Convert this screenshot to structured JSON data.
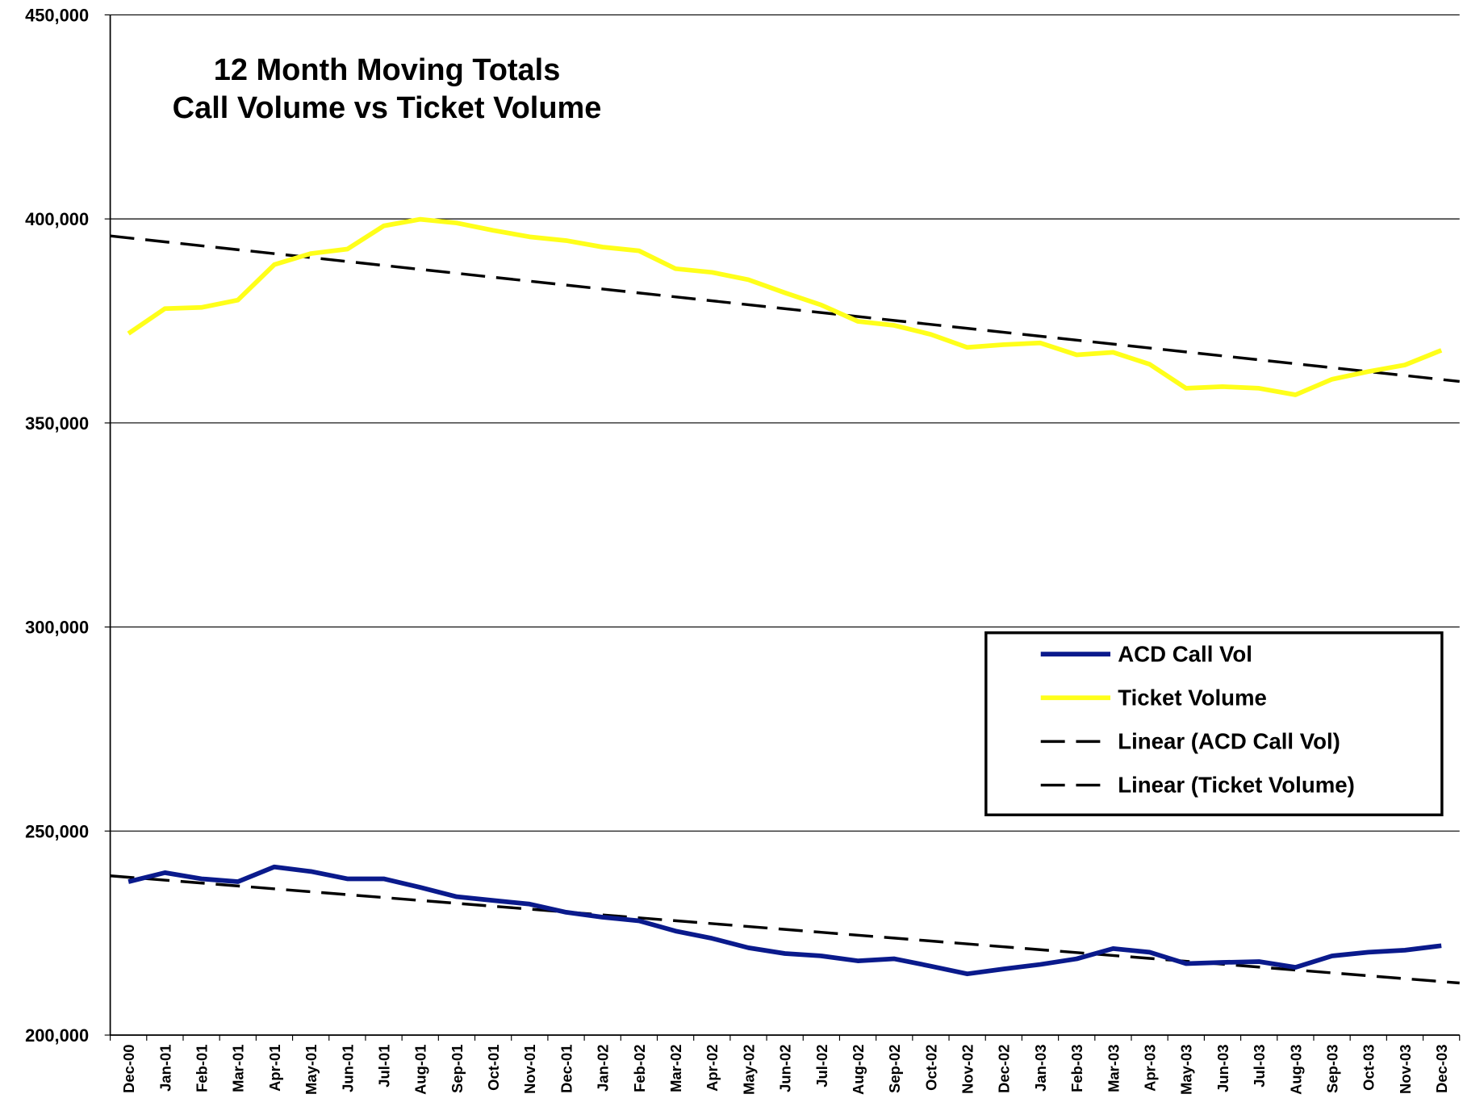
{
  "chart_data": {
    "type": "line",
    "title": [
      "12 Month Moving Totals",
      "Call Volume vs Ticket Volume"
    ],
    "categories": [
      "Dec-00",
      "Jan-01",
      "Feb-01",
      "Mar-01",
      "Apr-01",
      "May-01",
      "Jun-01",
      "Jul-01",
      "Aug-01",
      "Sep-01",
      "Oct-01",
      "Nov-01",
      "Dec-01",
      "Jan-02",
      "Feb-02",
      "Mar-02",
      "Apr-02",
      "May-02",
      "Jun-02",
      "Jul-02",
      "Aug-02",
      "Sep-02",
      "Oct-02",
      "Nov-02",
      "Dec-02",
      "Jan-03",
      "Feb-03",
      "Mar-03",
      "Apr-03",
      "May-03",
      "Jun-03",
      "Jul-03",
      "Aug-03",
      "Sep-03",
      "Oct-03",
      "Nov-03",
      "Dec-03"
    ],
    "series": [
      {
        "name": "ACD Call Vol",
        "color": "#0a1a8c",
        "values": [
          237600,
          239800,
          238300,
          237600,
          241200,
          240100,
          238300,
          238300,
          236200,
          233900,
          233000,
          232100,
          230100,
          228900,
          228000,
          225500,
          223700,
          221400,
          220000,
          219400,
          218200,
          218700,
          216900,
          215000,
          216200,
          217300,
          218700,
          221200,
          220300,
          217500,
          217800,
          218000,
          216600,
          219400,
          220300,
          220800,
          221900
        ],
        "trendline": {
          "name": "Linear (ACD Call Vol)",
          "color": "#000000"
        }
      },
      {
        "name": "Ticket Volume",
        "color": "#ffff1a",
        "values": [
          371900,
          378000,
          378300,
          380100,
          388800,
          391500,
          392600,
          398300,
          399900,
          399000,
          397200,
          395600,
          394700,
          393100,
          392200,
          387800,
          386900,
          385100,
          381900,
          378900,
          374900,
          373900,
          371700,
          368500,
          369200,
          369600,
          366700,
          367300,
          364400,
          358500,
          358900,
          358500,
          356900,
          360700,
          362600,
          364200,
          367800
        ],
        "trendline": {
          "name": "Linear (Ticket Volume)",
          "color": "#000000"
        }
      }
    ],
    "ylim": [
      200000,
      450000
    ],
    "yticks": [
      {
        "value": 200000,
        "label": "200,000"
      },
      {
        "value": 250000,
        "label": "250,000"
      },
      {
        "value": 300000,
        "label": "300,000"
      },
      {
        "value": 350000,
        "label": "350,000"
      },
      {
        "value": 400000,
        "label": "400,000"
      },
      {
        "value": 450000,
        "label": "450,000"
      }
    ],
    "grid": true,
    "legend": "right"
  }
}
